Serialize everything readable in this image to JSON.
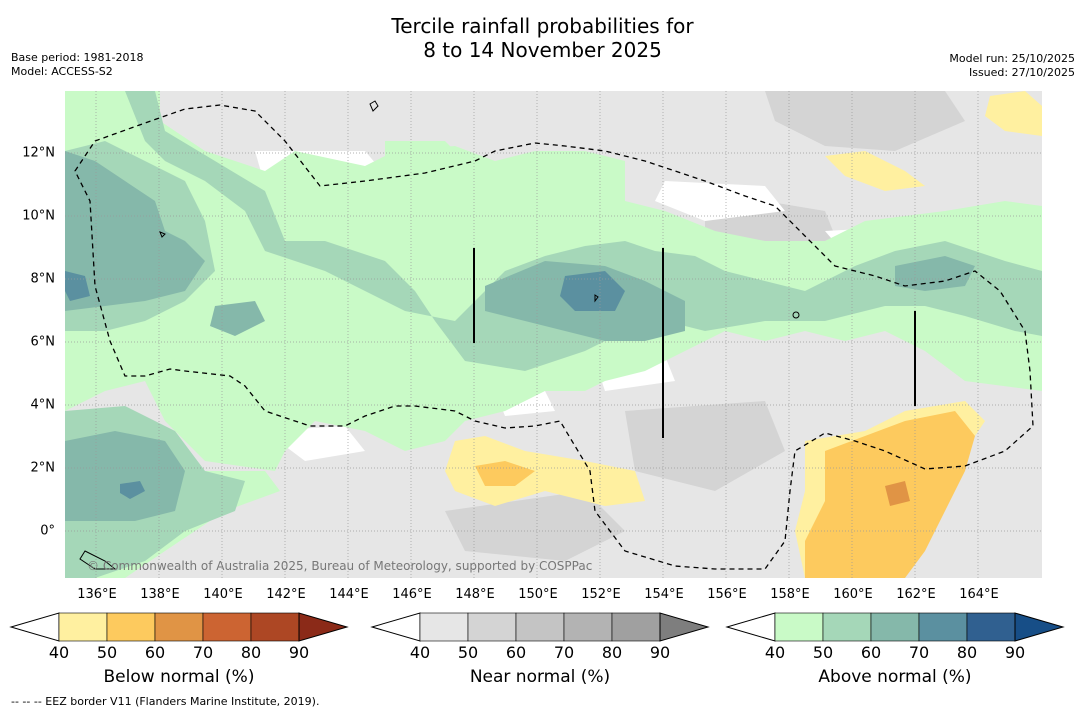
{
  "header": {
    "title_line1": "Tercile rainfall probabilities for",
    "title_line2": "8 to 14 November 2025",
    "base_period": "Base period: 1981-2018",
    "model": "Model: ACCESS-S2",
    "model_run": "Model run: 25/10/2025",
    "issued": "Issued: 27/10/2025"
  },
  "map": {
    "x_ticks": [
      "136°E",
      "138°E",
      "140°E",
      "142°E",
      "144°E",
      "146°E",
      "148°E",
      "150°E",
      "152°E",
      "154°E",
      "156°E",
      "158°E",
      "160°E",
      "162°E",
      "164°E"
    ],
    "y_ticks": [
      "12°N",
      "10°N",
      "8°N",
      "6°N",
      "4°N",
      "2°N",
      "0°"
    ],
    "copyright": "© Commonwealth of Australia 2025, Bureau of Meteorology, supported by COSPPac"
  },
  "colorbars": {
    "levels": [
      "40",
      "50",
      "60",
      "70",
      "80",
      "90"
    ],
    "below": {
      "label": "Below normal (%)",
      "colors": [
        "#fff0a0",
        "#fdca5e",
        "#e09445",
        "#cc6432",
        "#ad4724",
        "#8b2a18"
      ]
    },
    "near": {
      "label": "Near normal (%)",
      "colors": [
        "#e6e6e6",
        "#d4d4d4",
        "#c4c4c4",
        "#b3b3b3",
        "#a0a0a0",
        "#7e7e7e"
      ]
    },
    "above": {
      "label": "Above normal (%)",
      "colors": [
        "#c9fac7",
        "#a5d7b8",
        "#85b8aa",
        "#5b90a0",
        "#306090",
        "#174e87"
      ]
    }
  },
  "footer": {
    "eez_note": "--  --  -- EEZ border V11 (Flanders Marine Institute, 2019)."
  }
}
